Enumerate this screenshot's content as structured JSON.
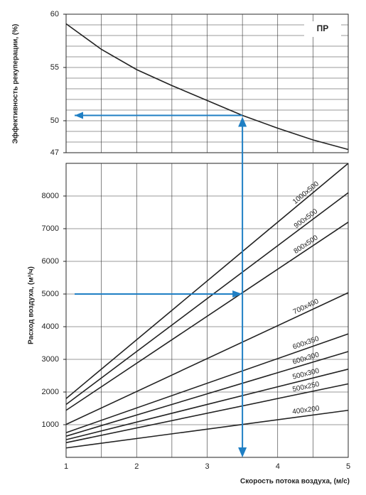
{
  "chart_data": [
    {
      "type": "line",
      "ylabel": "Эффективность рекуперации, (%)",
      "label": "ПР",
      "x": [
        1,
        1.5,
        2,
        2.5,
        3,
        3.5,
        4,
        4.5,
        5
      ],
      "series": [
        {
          "name": "ПР",
          "color": "#222222",
          "values": [
            59.1,
            56.7,
            54.8,
            53.3,
            51.9,
            50.5,
            49.3,
            48.2,
            47.3
          ]
        }
      ],
      "xlim": [
        1,
        5
      ],
      "xgrid": [
        1,
        1.5,
        2,
        2.5,
        3,
        3.5,
        4,
        4.5,
        5
      ],
      "ylim": [
        47,
        60
      ],
      "yticks": [
        47,
        50,
        55,
        60
      ],
      "ygrid": [
        48,
        49,
        50,
        51,
        52,
        53,
        54,
        55,
        56,
        57,
        58,
        59,
        60
      ],
      "grid": true
    },
    {
      "type": "line",
      "xlabel": "Скорость потока воздуха, (м/с)",
      "ylabel": "Расход воздуха, (м³/ч)",
      "x": [
        1,
        5
      ],
      "series": [
        {
          "name": "1000x500",
          "color": "#222222",
          "values": [
            1800,
            9000
          ]
        },
        {
          "name": "900x500",
          "color": "#222222",
          "values": [
            1620,
            8100
          ]
        },
        {
          "name": "800x500",
          "color": "#222222",
          "values": [
            1440,
            7200
          ]
        },
        {
          "name": "700x400",
          "color": "#222222",
          "values": [
            1008,
            5040
          ]
        },
        {
          "name": "600x350",
          "color": "#222222",
          "values": [
            756,
            3780
          ]
        },
        {
          "name": "600x300",
          "color": "#222222",
          "values": [
            648,
            3240
          ]
        },
        {
          "name": "500x300",
          "color": "#222222",
          "values": [
            540,
            2700
          ]
        },
        {
          "name": "500x250",
          "color": "#222222",
          "values": [
            450,
            2250
          ]
        },
        {
          "name": "400x200",
          "color": "#222222",
          "values": [
            288,
            1440
          ]
        }
      ],
      "xlim": [
        1,
        5
      ],
      "xticks": [
        1,
        2,
        3,
        4,
        5
      ],
      "xgrid": [
        1,
        1.5,
        2,
        2.5,
        3,
        3.5,
        4,
        4.5,
        5
      ],
      "ylim": [
        0,
        9000
      ],
      "yticks": [
        1000,
        2000,
        3000,
        4000,
        5000,
        6000,
        7000,
        8000
      ],
      "grid": true,
      "guide": {
        "x": 3.5,
        "flow": 5000,
        "efficiency": 50.5,
        "color": "#1f7fc4"
      }
    }
  ]
}
